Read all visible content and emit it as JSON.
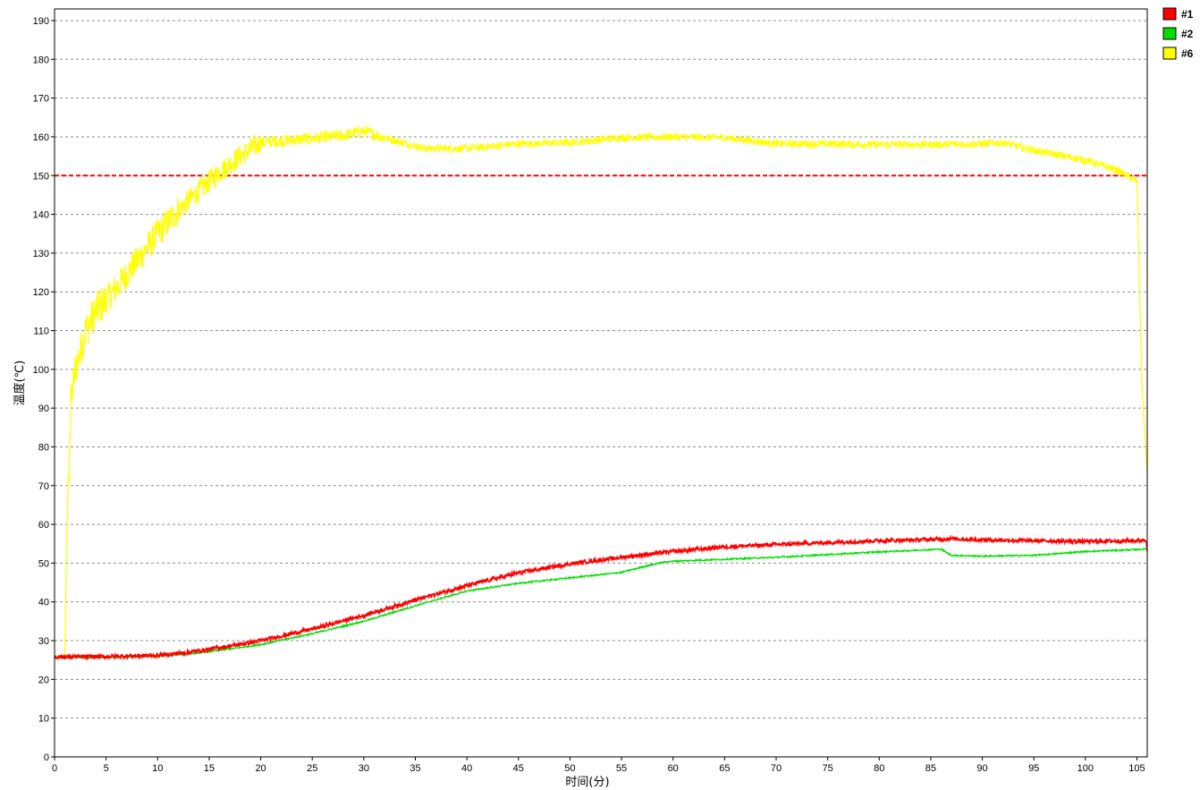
{
  "chart_data": {
    "type": "line",
    "title": "",
    "xlabel": "时间(分)",
    "ylabel": "温度(℃)",
    "xlim": [
      0,
      106
    ],
    "ylim": [
      0,
      193
    ],
    "x_ticks": [
      0,
      5,
      10,
      15,
      20,
      25,
      30,
      35,
      40,
      45,
      50,
      55,
      60,
      65,
      70,
      75,
      80,
      85,
      90,
      95,
      100,
      105
    ],
    "y_ticks": [
      0,
      10,
      20,
      30,
      40,
      50,
      60,
      70,
      80,
      90,
      100,
      110,
      120,
      130,
      140,
      150,
      160,
      170,
      180,
      190
    ],
    "grid": "horizontal dashed",
    "legend_position": "top-right",
    "reference_line": {
      "y": 150,
      "color": "#ff0000",
      "style": "dashed"
    },
    "series": [
      {
        "name": "#1",
        "color": "#ff0000",
        "noise": 0.5,
        "x": [
          0,
          5,
          10,
          13,
          15,
          18,
          20,
          25,
          30,
          35,
          40,
          45,
          50,
          55,
          60,
          65,
          70,
          75,
          80,
          85,
          87,
          90,
          95,
          100,
          105,
          105.9,
          106
        ],
        "y": [
          25.8,
          25.9,
          26.2,
          27.0,
          27.8,
          29.0,
          30.0,
          33.0,
          36.5,
          40.5,
          44.2,
          47.5,
          49.8,
          51.5,
          53.0,
          54.2,
          54.8,
          55.3,
          55.8,
          56.1,
          56.3,
          56.0,
          55.8,
          55.6,
          55.8,
          56.0,
          53.5
        ]
      },
      {
        "name": "#2",
        "color": "#00dd00",
        "noise": 0.2,
        "x": [
          0,
          5,
          10,
          13,
          15,
          18,
          20,
          25,
          30,
          35,
          40,
          45,
          50,
          55,
          57,
          59,
          60,
          65,
          70,
          75,
          80,
          85,
          86,
          87,
          90,
          95,
          100,
          105,
          106
        ],
        "y": [
          25.6,
          25.7,
          26.0,
          26.6,
          27.2,
          28.2,
          29.0,
          31.8,
          35.0,
          39.0,
          42.8,
          44.8,
          46.2,
          47.6,
          49.0,
          50.2,
          50.5,
          51.0,
          51.5,
          52.2,
          52.9,
          53.5,
          53.6,
          52.0,
          51.8,
          52.0,
          53.0,
          53.5,
          53.7
        ]
      },
      {
        "name": "#6",
        "color": "#ffff00",
        "x": [
          0,
          1,
          1.2,
          1.6,
          2,
          3,
          4,
          6,
          8,
          10,
          12,
          14,
          16,
          18,
          20,
          22,
          25,
          28,
          30,
          33,
          36,
          40,
          45,
          50,
          55,
          60,
          65,
          70,
          75,
          80,
          85,
          90,
          92,
          95,
          100,
          103,
          105,
          105.5,
          106
        ],
        "y": [
          26.0,
          26.0,
          60,
          92,
          100,
          110,
          115,
          121,
          128,
          135,
          141,
          146,
          151,
          155,
          158.5,
          159.0,
          159.6,
          160.3,
          161.5,
          159.0,
          157.0,
          157.0,
          158.2,
          158.5,
          159.8,
          160.0,
          159.8,
          158.2,
          158.2,
          158.0,
          158.0,
          158.2,
          158.5,
          156.5,
          154.0,
          151.5,
          148.5,
          95,
          73
        ]
      }
    ]
  }
}
